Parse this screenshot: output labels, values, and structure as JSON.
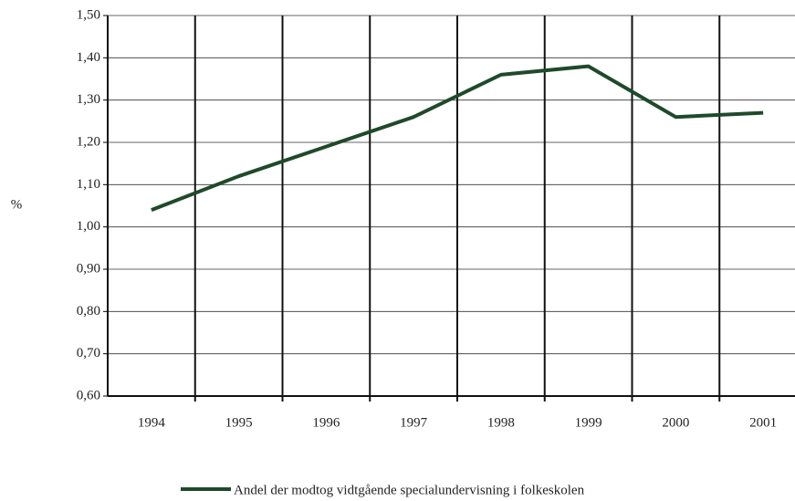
{
  "chart_data": {
    "type": "line",
    "ylabel": "%",
    "categories": [
      "1994",
      "1995",
      "1996",
      "1997",
      "1998",
      "1999",
      "2000",
      "2001"
    ],
    "series": [
      {
        "name": "Andel der modtog vidtgående specialundervisning i folkeskolen",
        "color": "#1e4a2a",
        "values": [
          1.04,
          1.12,
          1.19,
          1.26,
          1.36,
          1.38,
          1.26,
          1.27
        ]
      }
    ],
    "ylim": [
      0.6,
      1.5
    ],
    "yticks": [
      {
        "value": 0.6,
        "label": "0,60"
      },
      {
        "value": 0.7,
        "label": "0,70"
      },
      {
        "value": 0.8,
        "label": "0,80"
      },
      {
        "value": 0.9,
        "label": "0,90"
      },
      {
        "value": 1.0,
        "label": "1,00"
      },
      {
        "value": 1.1,
        "label": "1,10"
      },
      {
        "value": 1.2,
        "label": "1,20"
      },
      {
        "value": 1.3,
        "label": "1,30"
      },
      {
        "value": 1.4,
        "label": "1,40"
      },
      {
        "value": 1.5,
        "label": "1,50"
      }
    ],
    "grid": true,
    "legend": "bottom"
  }
}
